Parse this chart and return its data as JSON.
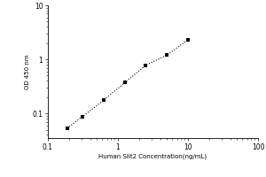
{
  "x_data": [
    0.188,
    0.313,
    0.625,
    1.25,
    2.5,
    5.0,
    10.0
  ],
  "y_data": [
    0.053,
    0.088,
    0.175,
    0.37,
    0.78,
    1.2,
    2.3
  ],
  "xlabel": "Human Slit2 Concentration(ng/mL)",
  "ylabel": "OD 450 nm",
  "xlim": [
    0.1,
    100
  ],
  "ylim": [
    0.035,
    10
  ],
  "marker": "s",
  "marker_color": "black",
  "marker_size": 3.5,
  "line_style": ":",
  "line_color": "black",
  "line_width": 0.8,
  "background_color": "#ffffff",
  "xlabel_fontsize": 5.0,
  "ylabel_fontsize": 5.0,
  "tick_fontsize": 5.5,
  "xticks": [
    0.1,
    1,
    10,
    100
  ],
  "xtick_labels": [
    "0.1",
    "1",
    "10",
    "100"
  ],
  "yticks": [
    0.1,
    1,
    10
  ],
  "ytick_labels": [
    "0.1",
    "1",
    "10"
  ]
}
